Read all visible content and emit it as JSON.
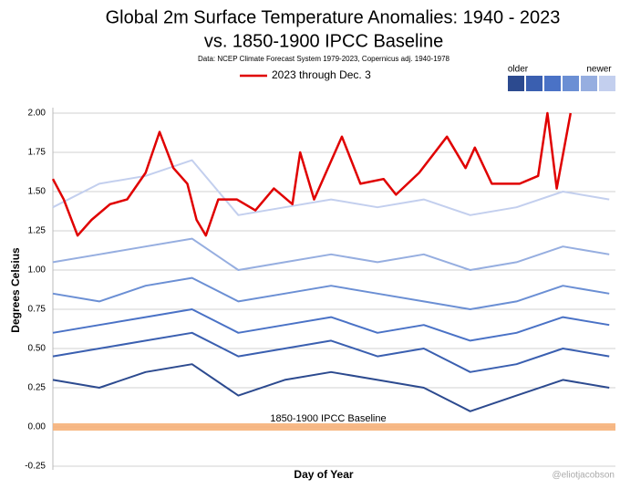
{
  "chart_data": {
    "type": "line",
    "title": "Global 2m Surface Temperature Anomalies: 1940 - 2023",
    "subtitle": "vs. 1850-1900 IPCC Baseline",
    "source": "Data: NCEP Climate Forecast System 1979-2023, Copernicus adj. 1940-1978",
    "x_label": "Day of Year",
    "y_label": "Degrees Celsius",
    "credit": "@eliotjacobson",
    "xlim": [
      1,
      365
    ],
    "ylim": [
      -0.25,
      2.0
    ],
    "yticks": [
      -0.25,
      {
        "value": 0,
        "label": "0.00"
      },
      0.25,
      {
        "value": 0.5,
        "label": "0.50"
      },
      0.75,
      {
        "value": 1,
        "label": "1.00"
      },
      1.25,
      {
        "value": 1.5,
        "label": "1.50"
      },
      1.75,
      {
        "value": 2,
        "label": "2.00"
      }
    ],
    "grid": true,
    "baseline": {
      "value": 0,
      "label": "1850-1900 IPCC Baseline",
      "color": "#f7b27a"
    },
    "scale_legend": {
      "labels": [
        "older",
        "newer"
      ],
      "colors": [
        "#2c4a8f",
        "#3a5fb0",
        "#4a72c6",
        "#6b8fd4",
        "#96aee0",
        "#c3cfee"
      ]
    },
    "background_series": [
      {
        "color": "#2c4a8f",
        "x": [
          1,
          31,
          61,
          91,
          121,
          151,
          181,
          211,
          241,
          271,
          301,
          331,
          361
        ],
        "values": [
          0.3,
          0.25,
          0.35,
          0.4,
          0.2,
          0.3,
          0.35,
          0.3,
          0.25,
          0.1,
          0.2,
          0.3,
          0.25
        ]
      },
      {
        "color": "#3a5fb0",
        "x": [
          1,
          31,
          61,
          91,
          121,
          151,
          181,
          211,
          241,
          271,
          301,
          331,
          361
        ],
        "values": [
          0.45,
          0.5,
          0.55,
          0.6,
          0.45,
          0.5,
          0.55,
          0.45,
          0.5,
          0.35,
          0.4,
          0.5,
          0.45
        ]
      },
      {
        "color": "#4a72c6",
        "x": [
          1,
          31,
          61,
          91,
          121,
          151,
          181,
          211,
          241,
          271,
          301,
          331,
          361
        ],
        "values": [
          0.6,
          0.65,
          0.7,
          0.75,
          0.6,
          0.65,
          0.7,
          0.6,
          0.65,
          0.55,
          0.6,
          0.7,
          0.65
        ]
      },
      {
        "color": "#6b8fd4",
        "x": [
          1,
          31,
          61,
          91,
          121,
          151,
          181,
          211,
          241,
          271,
          301,
          331,
          361
        ],
        "values": [
          0.85,
          0.8,
          0.9,
          0.95,
          0.8,
          0.85,
          0.9,
          0.85,
          0.8,
          0.75,
          0.8,
          0.9,
          0.85
        ]
      },
      {
        "color": "#96aee0",
        "x": [
          1,
          31,
          61,
          91,
          121,
          151,
          181,
          211,
          241,
          271,
          301,
          331,
          361
        ],
        "values": [
          1.05,
          1.1,
          1.15,
          1.2,
          1.0,
          1.05,
          1.1,
          1.05,
          1.1,
          1.0,
          1.05,
          1.15,
          1.1
        ]
      },
      {
        "color": "#c3cfee",
        "x": [
          1,
          31,
          61,
          91,
          121,
          151,
          181,
          211,
          241,
          271,
          301,
          331,
          361
        ],
        "values": [
          1.4,
          1.55,
          1.6,
          1.7,
          1.35,
          1.4,
          1.45,
          1.4,
          1.45,
          1.35,
          1.4,
          1.5,
          1.45
        ]
      }
    ],
    "series": [
      {
        "name": "2023 through Dec. 3",
        "color": "#e00000",
        "x": [
          1,
          8,
          17,
          26,
          38,
          49,
          61,
          70,
          79,
          88,
          94,
          100,
          108,
          120,
          132,
          144,
          156,
          161,
          170,
          188,
          200,
          215,
          223,
          238,
          256,
          268,
          274,
          285,
          303,
          315,
          321,
          327,
          336
        ],
        "values": [
          1.58,
          1.45,
          1.22,
          1.32,
          1.42,
          1.45,
          1.62,
          1.88,
          1.65,
          1.55,
          1.32,
          1.22,
          1.45,
          1.45,
          1.38,
          1.52,
          1.42,
          1.75,
          1.45,
          1.85,
          1.55,
          1.58,
          1.48,
          1.62,
          1.85,
          1.65,
          1.78,
          1.55,
          1.55,
          1.6,
          2.0,
          1.52,
          2.0
        ]
      }
    ]
  }
}
